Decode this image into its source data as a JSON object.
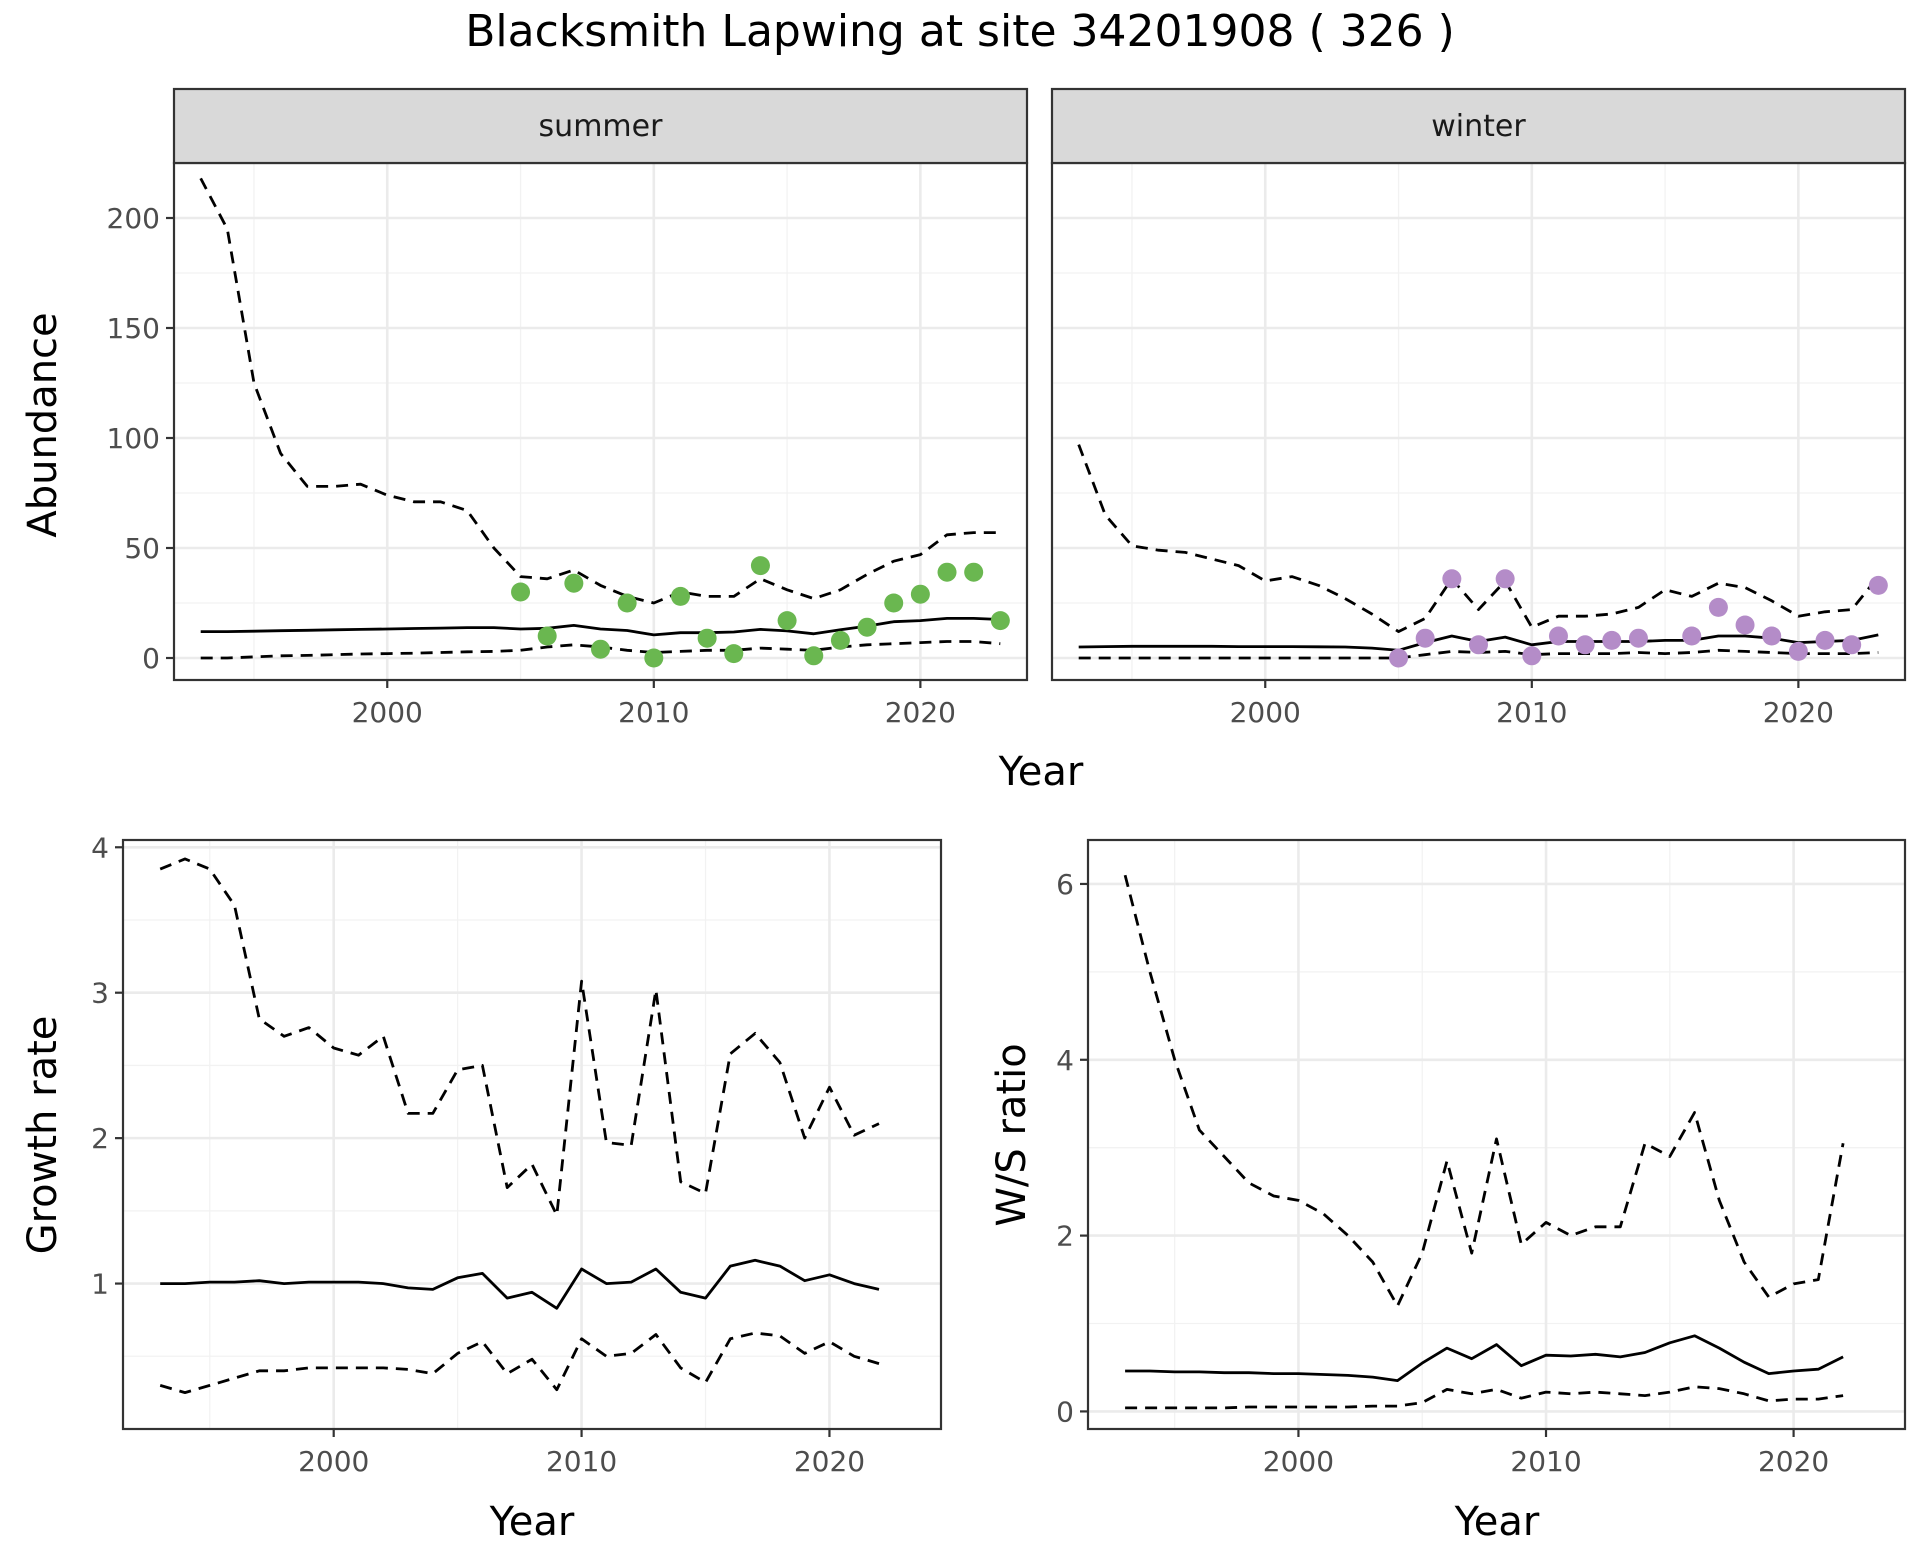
{
  "title": "Blacksmith Lapwing at site 34201908 ( 326 )",
  "chart_data": [
    {
      "type": "line",
      "facet": "summer",
      "xlabel": "Year",
      "ylabel": "Abundance",
      "xlim": [
        1992,
        2024
      ],
      "ylim": [
        -10,
        225
      ],
      "x_ticks": [
        2000,
        2010,
        2020
      ],
      "y_ticks": [
        0,
        50,
        100,
        150,
        200
      ],
      "point_color": "#6ab750",
      "x": [
        1993,
        1994,
        1995,
        1996,
        1997,
        1998,
        1999,
        2000,
        2001,
        2002,
        2003,
        2004,
        2005,
        2006,
        2007,
        2008,
        2009,
        2010,
        2011,
        2012,
        2013,
        2014,
        2015,
        2016,
        2017,
        2018,
        2019,
        2020,
        2021,
        2022,
        2023
      ],
      "series": [
        {
          "role": "mean",
          "style": "solid",
          "values": [
            12,
            12,
            12.2,
            12.4,
            12.6,
            12.8,
            13,
            13.2,
            13.4,
            13.6,
            13.8,
            13.8,
            13.2,
            13.5,
            14.8,
            13.2,
            12.5,
            10.5,
            11.5,
            11.5,
            11.8,
            13,
            12.3,
            11,
            12.8,
            14.5,
            16.5,
            17,
            18,
            18,
            17.5
          ]
        },
        {
          "role": "upper",
          "style": "dashed",
          "values": [
            218,
            195,
            125,
            93,
            78,
            78,
            79,
            74,
            71,
            71,
            67,
            50,
            37,
            36,
            40,
            33,
            28,
            25,
            30,
            28,
            28,
            36,
            31,
            27,
            31,
            38,
            44,
            47,
            56,
            57,
            57
          ]
        },
        {
          "role": "lower",
          "style": "dashed",
          "values": [
            0,
            0,
            0.5,
            1,
            1.2,
            1.5,
            1.8,
            2,
            2.2,
            2.5,
            2.8,
            3,
            3.5,
            5,
            6,
            5,
            3.5,
            2.5,
            3,
            3.5,
            3.5,
            4.5,
            4,
            3.5,
            5,
            6,
            6.5,
            7,
            7.5,
            7.5,
            6.5
          ]
        }
      ],
      "points": {
        "x": [
          2005,
          2006,
          2007,
          2008,
          2009,
          2010,
          2011,
          2012,
          2013,
          2014,
          2015,
          2016,
          2017,
          2018,
          2019,
          2020,
          2021,
          2022,
          2023
        ],
        "y": [
          30,
          10,
          34,
          4,
          25,
          0,
          28,
          9,
          2,
          42,
          17,
          1,
          8,
          14,
          25,
          29,
          39,
          39,
          17
        ]
      }
    },
    {
      "type": "line",
      "facet": "winter",
      "xlabel": "Year",
      "ylabel": "Abundance",
      "xlim": [
        1992,
        2024
      ],
      "ylim": [
        -10,
        225
      ],
      "x_ticks": [
        2000,
        2010,
        2020
      ],
      "y_ticks": [
        0,
        50,
        100,
        150,
        200
      ],
      "point_color": "#b48cc8",
      "x": [
        1993,
        1994,
        1995,
        1996,
        1997,
        1998,
        1999,
        2000,
        2001,
        2002,
        2003,
        2004,
        2005,
        2006,
        2007,
        2008,
        2009,
        2010,
        2011,
        2012,
        2013,
        2014,
        2015,
        2016,
        2017,
        2018,
        2019,
        2020,
        2021,
        2022,
        2023
      ],
      "series": [
        {
          "role": "mean",
          "style": "solid",
          "values": [
            5,
            5.2,
            5.3,
            5.3,
            5.3,
            5.3,
            5.2,
            5.2,
            5.2,
            5.1,
            5,
            4.5,
            3.5,
            7,
            10,
            7.5,
            9.5,
            6,
            7.5,
            7.5,
            7.5,
            7.5,
            8,
            8,
            10,
            10,
            9,
            7,
            7.5,
            8,
            10.5
          ]
        },
        {
          "role": "upper",
          "style": "dashed",
          "values": [
            97,
            65,
            51,
            49,
            48,
            45,
            42,
            35,
            37,
            33,
            27,
            20,
            12,
            18,
            36,
            22,
            35,
            14,
            19,
            19,
            20,
            23,
            31,
            28,
            34,
            32,
            26,
            19,
            21,
            22,
            37
          ]
        },
        {
          "role": "lower",
          "style": "dashed",
          "values": [
            0,
            0,
            0,
            0,
            0,
            0,
            0,
            0,
            0,
            0,
            0,
            0,
            0,
            1.5,
            3,
            2.5,
            3,
            1.5,
            2,
            2,
            2,
            2.5,
            2,
            2.5,
            3.5,
            3,
            2.5,
            2,
            2,
            2,
            2.5
          ]
        }
      ],
      "points": {
        "x": [
          2005,
          2006,
          2007,
          2008,
          2009,
          2010,
          2011,
          2012,
          2013,
          2014,
          2016,
          2017,
          2018,
          2019,
          2020,
          2021,
          2022,
          2023
        ],
        "y": [
          0,
          9,
          36,
          6,
          36,
          1,
          10,
          6,
          8,
          9,
          10,
          23,
          15,
          10,
          3,
          8,
          6,
          33
        ]
      }
    },
    {
      "type": "line",
      "facet": "growth",
      "xlabel": "Year",
      "ylabel": "Growth rate",
      "xlim": [
        1991.5,
        2024.5
      ],
      "ylim": [
        0,
        4.05
      ],
      "x_ticks": [
        2000,
        2010,
        2020
      ],
      "y_ticks": [
        1,
        2,
        3,
        4
      ],
      "x": [
        1993,
        1994,
        1995,
        1996,
        1997,
        1998,
        1999,
        2000,
        2001,
        2002,
        2003,
        2004,
        2005,
        2006,
        2007,
        2008,
        2009,
        2010,
        2011,
        2012,
        2013,
        2014,
        2015,
        2016,
        2017,
        2018,
        2019,
        2020,
        2021,
        2022
      ],
      "series": [
        {
          "role": "mean",
          "style": "solid",
          "values": [
            1.0,
            1.0,
            1.01,
            1.01,
            1.02,
            1.0,
            1.01,
            1.01,
            1.01,
            1.0,
            0.97,
            0.96,
            1.04,
            1.07,
            0.9,
            0.94,
            0.83,
            1.1,
            1.0,
            1.01,
            1.1,
            0.94,
            0.9,
            1.12,
            1.16,
            1.12,
            1.02,
            1.06,
            1.0,
            0.96
          ]
        },
        {
          "role": "upper",
          "style": "dashed",
          "values": [
            3.85,
            3.92,
            3.85,
            3.6,
            2.82,
            2.7,
            2.76,
            2.62,
            2.57,
            2.7,
            2.17,
            2.17,
            2.47,
            2.5,
            1.66,
            1.82,
            1.47,
            3.08,
            1.97,
            1.95,
            3.02,
            1.7,
            1.62,
            2.58,
            2.72,
            2.52,
            2.0,
            2.35,
            2.02,
            2.1
          ]
        },
        {
          "role": "lower",
          "style": "dashed",
          "values": [
            0.3,
            0.25,
            0.3,
            0.35,
            0.4,
            0.4,
            0.42,
            0.42,
            0.42,
            0.42,
            0.41,
            0.38,
            0.52,
            0.6,
            0.38,
            0.48,
            0.27,
            0.62,
            0.5,
            0.52,
            0.65,
            0.42,
            0.32,
            0.62,
            0.66,
            0.64,
            0.52,
            0.6,
            0.5,
            0.45
          ]
        }
      ]
    },
    {
      "type": "line",
      "facet": "ws",
      "xlabel": "Year",
      "ylabel": "W/S ratio",
      "xlim": [
        1991.5,
        2024.5
      ],
      "ylim": [
        -0.2,
        6.5
      ],
      "x_ticks": [
        2000,
        2010,
        2020
      ],
      "y_ticks": [
        0,
        2,
        4,
        6
      ],
      "x": [
        1993,
        1994,
        1995,
        1996,
        1997,
        1998,
        1999,
        2000,
        2001,
        2002,
        2003,
        2004,
        2005,
        2006,
        2007,
        2008,
        2009,
        2010,
        2011,
        2012,
        2013,
        2014,
        2015,
        2016,
        2017,
        2018,
        2019,
        2020,
        2021,
        2022
      ],
      "series": [
        {
          "role": "mean",
          "style": "solid",
          "values": [
            0.46,
            0.46,
            0.45,
            0.45,
            0.44,
            0.44,
            0.43,
            0.43,
            0.42,
            0.41,
            0.39,
            0.35,
            0.55,
            0.72,
            0.6,
            0.76,
            0.52,
            0.64,
            0.63,
            0.65,
            0.62,
            0.67,
            0.78,
            0.86,
            0.72,
            0.56,
            0.43,
            0.46,
            0.48,
            0.62
          ]
        },
        {
          "role": "upper",
          "style": "dashed",
          "values": [
            6.1,
            5.0,
            4.0,
            3.2,
            2.9,
            2.6,
            2.45,
            2.4,
            2.25,
            2.0,
            1.7,
            1.2,
            1.8,
            2.85,
            1.8,
            3.1,
            1.9,
            2.15,
            2.0,
            2.1,
            2.1,
            3.05,
            2.9,
            3.4,
            2.4,
            1.7,
            1.3,
            1.45,
            1.5,
            3.05
          ]
        },
        {
          "role": "lower",
          "style": "dashed",
          "values": [
            0.04,
            0.04,
            0.04,
            0.04,
            0.04,
            0.05,
            0.05,
            0.05,
            0.05,
            0.05,
            0.06,
            0.06,
            0.1,
            0.25,
            0.2,
            0.25,
            0.15,
            0.22,
            0.2,
            0.22,
            0.2,
            0.18,
            0.22,
            0.28,
            0.26,
            0.2,
            0.12,
            0.14,
            0.14,
            0.18
          ]
        }
      ]
    }
  ],
  "strips": {
    "summer": "summer",
    "winter": "winter"
  },
  "axis_titles": {
    "top_x": "Year",
    "top_y": "Abundance",
    "bl_x": "Year",
    "bl_y": "Growth rate",
    "br_x": "Year",
    "br_y": "W/S ratio"
  }
}
